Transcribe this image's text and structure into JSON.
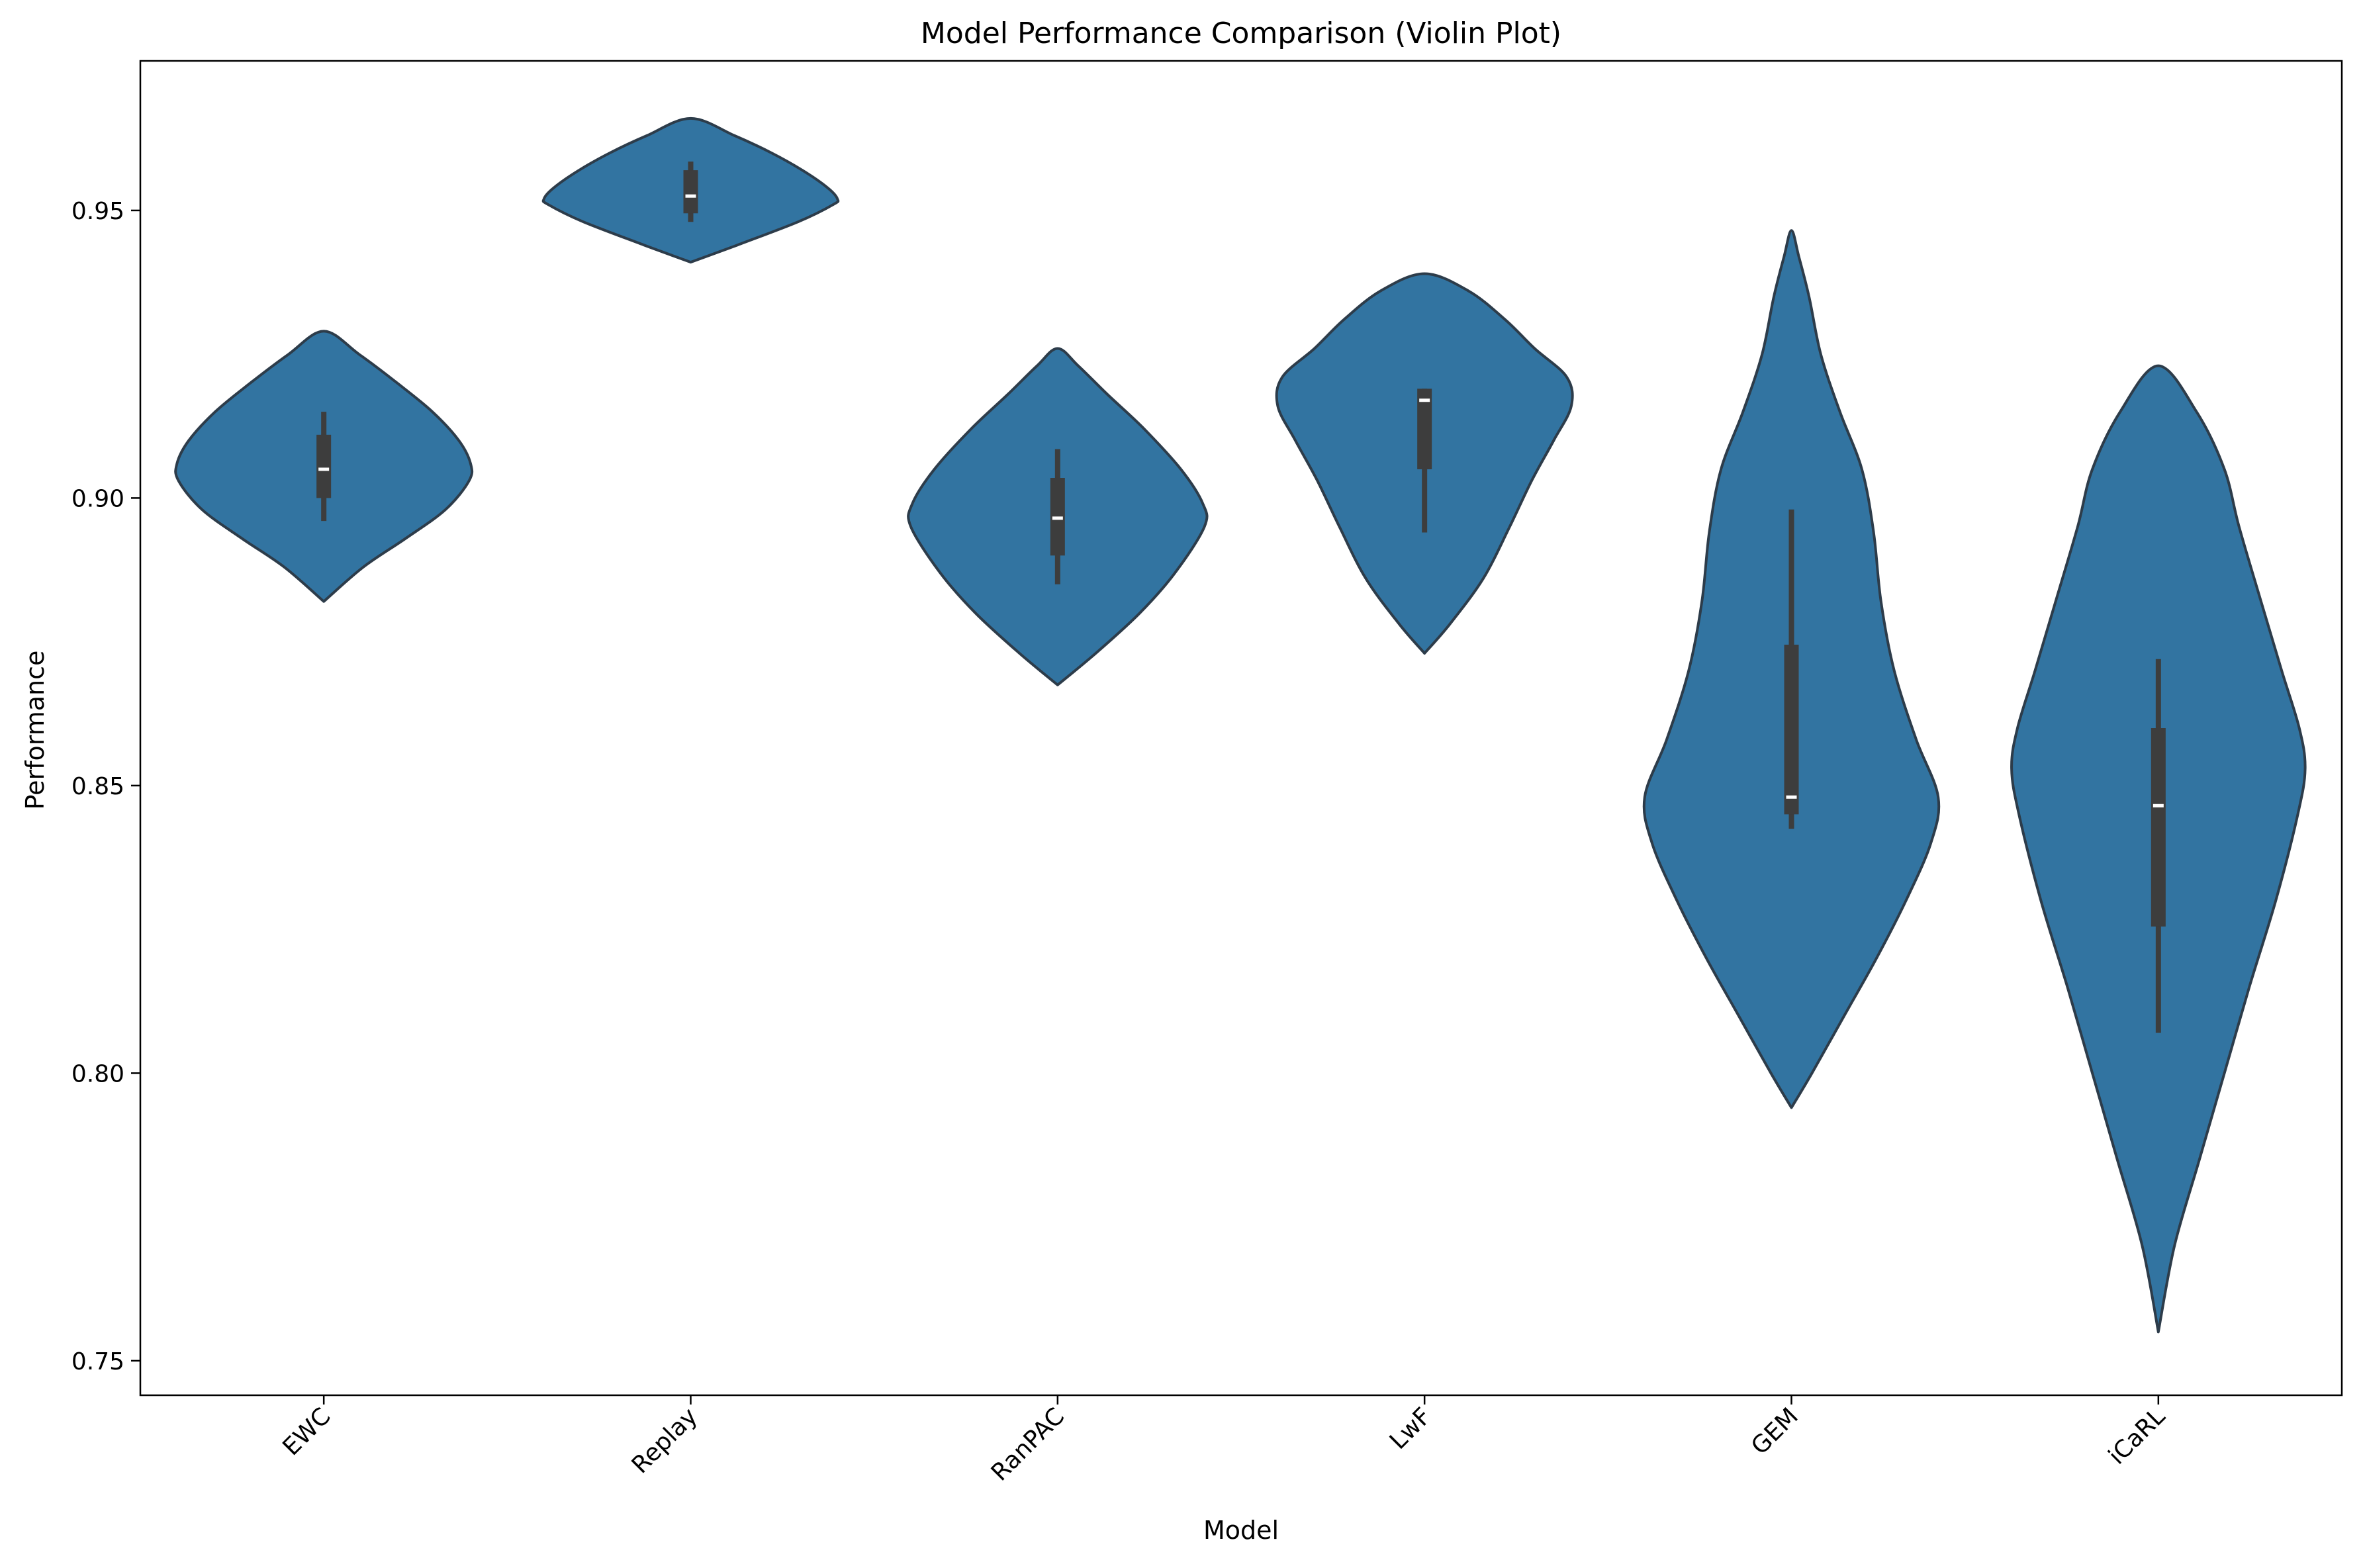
{
  "chart_data": {
    "type": "violin",
    "title": "Model Performance Comparison (Violin Plot)",
    "xlabel": "Model",
    "ylabel": "Performance",
    "ylim": [
      0.744,
      0.976
    ],
    "yticks": [
      0.75,
      0.8,
      0.85,
      0.9,
      0.95
    ],
    "ytick_labels": [
      "0.75",
      "0.80",
      "0.85",
      "0.90",
      "0.95"
    ],
    "categories": [
      "EWC",
      "Replay",
      "RanPAC",
      "LwF",
      "GEM",
      "iCaRL"
    ],
    "grid": false,
    "colors": {
      "violin_fill": "#3274a1",
      "violin_edge": "#2d3c4a",
      "box": "#3d3d3d",
      "median": "#ffffff"
    },
    "violins": [
      {
        "model": "EWC",
        "median": 0.905,
        "q1": 0.9,
        "q3": 0.911,
        "whisker_low": 0.896,
        "whisker_high": 0.915,
        "profile": [
          [
            0.882,
            0.0
          ],
          [
            0.888,
            0.27
          ],
          [
            0.893,
            0.56
          ],
          [
            0.898,
            0.83
          ],
          [
            0.903,
            0.99
          ],
          [
            0.906,
            1.0
          ],
          [
            0.91,
            0.92
          ],
          [
            0.915,
            0.74
          ],
          [
            0.92,
            0.5
          ],
          [
            0.925,
            0.24
          ],
          [
            0.929,
            0.0
          ]
        ]
      },
      {
        "model": "Replay",
        "median": 0.9525,
        "q1": 0.9495,
        "q3": 0.957,
        "whisker_low": 0.948,
        "whisker_high": 0.9585,
        "profile": [
          [
            0.941,
            0.0
          ],
          [
            0.944,
            0.32
          ],
          [
            0.948,
            0.73
          ],
          [
            0.951,
            0.97
          ],
          [
            0.952,
            1.0
          ],
          [
            0.954,
            0.93
          ],
          [
            0.957,
            0.76
          ],
          [
            0.96,
            0.55
          ],
          [
            0.963,
            0.3
          ],
          [
            0.966,
            0.0
          ]
        ]
      },
      {
        "model": "RanPAC",
        "median": 0.8965,
        "q1": 0.89,
        "q3": 0.9035,
        "whisker_low": 0.885,
        "whisker_high": 0.9085,
        "profile": [
          [
            0.8675,
            0.0
          ],
          [
            0.873,
            0.26
          ],
          [
            0.88,
            0.56
          ],
          [
            0.887,
            0.8
          ],
          [
            0.895,
            1.0
          ],
          [
            0.899,
            0.99
          ],
          [
            0.905,
            0.84
          ],
          [
            0.912,
            0.59
          ],
          [
            0.918,
            0.34
          ],
          [
            0.923,
            0.14
          ],
          [
            0.926,
            0.0
          ]
        ]
      },
      {
        "model": "LwF",
        "median": 0.917,
        "q1": 0.905,
        "q3": 0.919,
        "whisker_low": 0.894,
        "whisker_high": 0.919,
        "profile": [
          [
            0.873,
            0.0
          ],
          [
            0.878,
            0.17
          ],
          [
            0.886,
            0.4
          ],
          [
            0.895,
            0.58
          ],
          [
            0.903,
            0.73
          ],
          [
            0.91,
            0.88
          ],
          [
            0.916,
            1.0
          ],
          [
            0.921,
            0.97
          ],
          [
            0.926,
            0.75
          ],
          [
            0.931,
            0.55
          ],
          [
            0.936,
            0.3
          ],
          [
            0.939,
            0.0
          ]
        ]
      },
      {
        "model": "GEM",
        "median": 0.848,
        "q1": 0.845,
        "q3": 0.8745,
        "whisker_low": 0.8425,
        "whisker_high": 0.898,
        "profile": [
          [
            0.794,
            0.0
          ],
          [
            0.8,
            0.14
          ],
          [
            0.81,
            0.36
          ],
          [
            0.82,
            0.58
          ],
          [
            0.83,
            0.78
          ],
          [
            0.84,
            0.95
          ],
          [
            0.848,
            1.0
          ],
          [
            0.858,
            0.85
          ],
          [
            0.87,
            0.7
          ],
          [
            0.882,
            0.61
          ],
          [
            0.894,
            0.56
          ],
          [
            0.905,
            0.48
          ],
          [
            0.915,
            0.33
          ],
          [
            0.925,
            0.2
          ],
          [
            0.935,
            0.12
          ],
          [
            0.942,
            0.05
          ],
          [
            0.9465,
            0.0
          ]
        ]
      },
      {
        "model": "iCaRL",
        "median": 0.8465,
        "q1": 0.8255,
        "q3": 0.86,
        "whisker_low": 0.807,
        "whisker_high": 0.872,
        "profile": [
          [
            0.755,
            0.0
          ],
          [
            0.77,
            0.11
          ],
          [
            0.785,
            0.28
          ],
          [
            0.8,
            0.45
          ],
          [
            0.815,
            0.62
          ],
          [
            0.83,
            0.8
          ],
          [
            0.845,
            0.95
          ],
          [
            0.853,
            1.0
          ],
          [
            0.86,
            0.96
          ],
          [
            0.87,
            0.84
          ],
          [
            0.882,
            0.7
          ],
          [
            0.895,
            0.55
          ],
          [
            0.905,
            0.45
          ],
          [
            0.915,
            0.26
          ],
          [
            0.923,
            0.0
          ]
        ]
      }
    ]
  }
}
